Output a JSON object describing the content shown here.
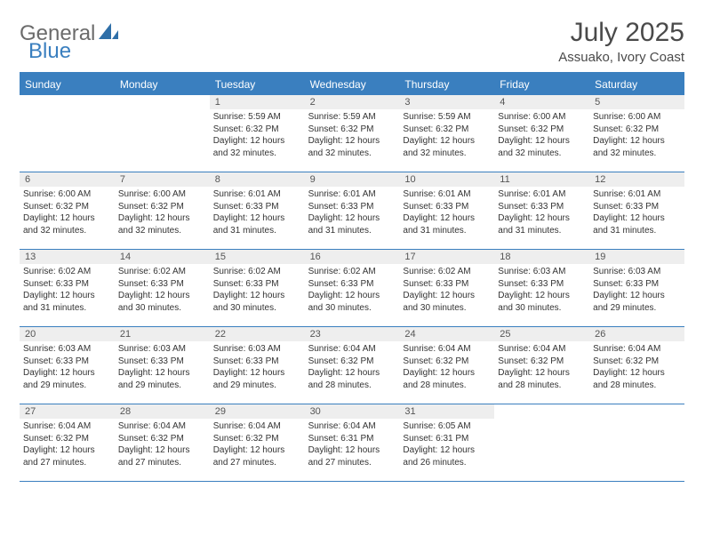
{
  "brand": {
    "general": "General",
    "blue": "Blue"
  },
  "title": "July 2025",
  "location": "Assuako, Ivory Coast",
  "colors": {
    "accent": "#3a7fbf",
    "header_text": "#ffffff",
    "daynum_bg": "#eeeeee",
    "text": "#333333",
    "title_color": "#4a4a4a"
  },
  "fonts": {
    "title_size": 30,
    "location_size": 15,
    "header_size": 12,
    "daynum_size": 11,
    "info_size": 10
  },
  "day_headers": [
    "Sunday",
    "Monday",
    "Tuesday",
    "Wednesday",
    "Thursday",
    "Friday",
    "Saturday"
  ],
  "weeks": [
    [
      {
        "day": "",
        "sunrise": "",
        "sunset": "",
        "daylight": ""
      },
      {
        "day": "",
        "sunrise": "",
        "sunset": "",
        "daylight": ""
      },
      {
        "day": "1",
        "sunrise": "Sunrise: 5:59 AM",
        "sunset": "Sunset: 6:32 PM",
        "daylight": "Daylight: 12 hours and 32 minutes."
      },
      {
        "day": "2",
        "sunrise": "Sunrise: 5:59 AM",
        "sunset": "Sunset: 6:32 PM",
        "daylight": "Daylight: 12 hours and 32 minutes."
      },
      {
        "day": "3",
        "sunrise": "Sunrise: 5:59 AM",
        "sunset": "Sunset: 6:32 PM",
        "daylight": "Daylight: 12 hours and 32 minutes."
      },
      {
        "day": "4",
        "sunrise": "Sunrise: 6:00 AM",
        "sunset": "Sunset: 6:32 PM",
        "daylight": "Daylight: 12 hours and 32 minutes."
      },
      {
        "day": "5",
        "sunrise": "Sunrise: 6:00 AM",
        "sunset": "Sunset: 6:32 PM",
        "daylight": "Daylight: 12 hours and 32 minutes."
      }
    ],
    [
      {
        "day": "6",
        "sunrise": "Sunrise: 6:00 AM",
        "sunset": "Sunset: 6:32 PM",
        "daylight": "Daylight: 12 hours and 32 minutes."
      },
      {
        "day": "7",
        "sunrise": "Sunrise: 6:00 AM",
        "sunset": "Sunset: 6:32 PM",
        "daylight": "Daylight: 12 hours and 32 minutes."
      },
      {
        "day": "8",
        "sunrise": "Sunrise: 6:01 AM",
        "sunset": "Sunset: 6:33 PM",
        "daylight": "Daylight: 12 hours and 31 minutes."
      },
      {
        "day": "9",
        "sunrise": "Sunrise: 6:01 AM",
        "sunset": "Sunset: 6:33 PM",
        "daylight": "Daylight: 12 hours and 31 minutes."
      },
      {
        "day": "10",
        "sunrise": "Sunrise: 6:01 AM",
        "sunset": "Sunset: 6:33 PM",
        "daylight": "Daylight: 12 hours and 31 minutes."
      },
      {
        "day": "11",
        "sunrise": "Sunrise: 6:01 AM",
        "sunset": "Sunset: 6:33 PM",
        "daylight": "Daylight: 12 hours and 31 minutes."
      },
      {
        "day": "12",
        "sunrise": "Sunrise: 6:01 AM",
        "sunset": "Sunset: 6:33 PM",
        "daylight": "Daylight: 12 hours and 31 minutes."
      }
    ],
    [
      {
        "day": "13",
        "sunrise": "Sunrise: 6:02 AM",
        "sunset": "Sunset: 6:33 PM",
        "daylight": "Daylight: 12 hours and 31 minutes."
      },
      {
        "day": "14",
        "sunrise": "Sunrise: 6:02 AM",
        "sunset": "Sunset: 6:33 PM",
        "daylight": "Daylight: 12 hours and 30 minutes."
      },
      {
        "day": "15",
        "sunrise": "Sunrise: 6:02 AM",
        "sunset": "Sunset: 6:33 PM",
        "daylight": "Daylight: 12 hours and 30 minutes."
      },
      {
        "day": "16",
        "sunrise": "Sunrise: 6:02 AM",
        "sunset": "Sunset: 6:33 PM",
        "daylight": "Daylight: 12 hours and 30 minutes."
      },
      {
        "day": "17",
        "sunrise": "Sunrise: 6:02 AM",
        "sunset": "Sunset: 6:33 PM",
        "daylight": "Daylight: 12 hours and 30 minutes."
      },
      {
        "day": "18",
        "sunrise": "Sunrise: 6:03 AM",
        "sunset": "Sunset: 6:33 PM",
        "daylight": "Daylight: 12 hours and 30 minutes."
      },
      {
        "day": "19",
        "sunrise": "Sunrise: 6:03 AM",
        "sunset": "Sunset: 6:33 PM",
        "daylight": "Daylight: 12 hours and 29 minutes."
      }
    ],
    [
      {
        "day": "20",
        "sunrise": "Sunrise: 6:03 AM",
        "sunset": "Sunset: 6:33 PM",
        "daylight": "Daylight: 12 hours and 29 minutes."
      },
      {
        "day": "21",
        "sunrise": "Sunrise: 6:03 AM",
        "sunset": "Sunset: 6:33 PM",
        "daylight": "Daylight: 12 hours and 29 minutes."
      },
      {
        "day": "22",
        "sunrise": "Sunrise: 6:03 AM",
        "sunset": "Sunset: 6:33 PM",
        "daylight": "Daylight: 12 hours and 29 minutes."
      },
      {
        "day": "23",
        "sunrise": "Sunrise: 6:04 AM",
        "sunset": "Sunset: 6:32 PM",
        "daylight": "Daylight: 12 hours and 28 minutes."
      },
      {
        "day": "24",
        "sunrise": "Sunrise: 6:04 AM",
        "sunset": "Sunset: 6:32 PM",
        "daylight": "Daylight: 12 hours and 28 minutes."
      },
      {
        "day": "25",
        "sunrise": "Sunrise: 6:04 AM",
        "sunset": "Sunset: 6:32 PM",
        "daylight": "Daylight: 12 hours and 28 minutes."
      },
      {
        "day": "26",
        "sunrise": "Sunrise: 6:04 AM",
        "sunset": "Sunset: 6:32 PM",
        "daylight": "Daylight: 12 hours and 28 minutes."
      }
    ],
    [
      {
        "day": "27",
        "sunrise": "Sunrise: 6:04 AM",
        "sunset": "Sunset: 6:32 PM",
        "daylight": "Daylight: 12 hours and 27 minutes."
      },
      {
        "day": "28",
        "sunrise": "Sunrise: 6:04 AM",
        "sunset": "Sunset: 6:32 PM",
        "daylight": "Daylight: 12 hours and 27 minutes."
      },
      {
        "day": "29",
        "sunrise": "Sunrise: 6:04 AM",
        "sunset": "Sunset: 6:32 PM",
        "daylight": "Daylight: 12 hours and 27 minutes."
      },
      {
        "day": "30",
        "sunrise": "Sunrise: 6:04 AM",
        "sunset": "Sunset: 6:31 PM",
        "daylight": "Daylight: 12 hours and 27 minutes."
      },
      {
        "day": "31",
        "sunrise": "Sunrise: 6:05 AM",
        "sunset": "Sunset: 6:31 PM",
        "daylight": "Daylight: 12 hours and 26 minutes."
      },
      {
        "day": "",
        "sunrise": "",
        "sunset": "",
        "daylight": ""
      },
      {
        "day": "",
        "sunrise": "",
        "sunset": "",
        "daylight": ""
      }
    ]
  ]
}
